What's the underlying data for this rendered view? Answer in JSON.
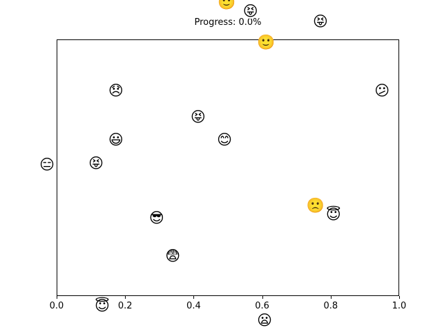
{
  "title": "Progress: 0.0%",
  "colors": {
    "background": "#ffffff",
    "line": "#000000",
    "text": "#000000"
  },
  "x_axis": {
    "tick_labels": [
      "0.0",
      "0.2",
      "0.4",
      "0.6",
      "0.8",
      "1.0"
    ]
  },
  "chart_data": {
    "type": "scatter",
    "title": "Progress: 0.0%",
    "xlabel": "",
    "ylabel": "",
    "xlim": [
      0,
      1
    ],
    "ylim": [
      0,
      1
    ],
    "x_ticks": [
      0,
      0.2,
      0.4,
      0.6,
      0.8,
      1.0
    ],
    "y_ticks": [],
    "grid": false,
    "legend": false,
    "marker": "emoji-face-glyphs",
    "points": [
      {
        "x": 0.496,
        "y": 1.143,
        "emoji": "🙂",
        "name": "slightly-smiling-face"
      },
      {
        "x": 0.566,
        "y": 1.108,
        "emoji": "😝",
        "name": "squinting-face-with-tongue"
      },
      {
        "x": 0.77,
        "y": 1.07,
        "emoji": "😝",
        "name": "squinting-face-with-tongue"
      },
      {
        "x": 0.611,
        "y": 0.989,
        "emoji": "🙂",
        "name": "slightly-smiling-face"
      },
      {
        "x": 0.173,
        "y": 0.798,
        "emoji": "😞",
        "name": "disappointed-face"
      },
      {
        "x": 0.95,
        "y": 0.798,
        "emoji": "😕",
        "name": "confused-face"
      },
      {
        "x": 0.413,
        "y": 0.698,
        "emoji": "😝",
        "name": "squinting-face-with-tongue"
      },
      {
        "x": 0.173,
        "y": 0.607,
        "emoji": "😃",
        "name": "smiling-face-open-mouth"
      },
      {
        "x": 0.49,
        "y": 0.609,
        "emoji": "😊",
        "name": "smiling-face-smiling-eyes"
      },
      {
        "x": 0.115,
        "y": 0.515,
        "emoji": "😝",
        "name": "squinting-face-with-tongue"
      },
      {
        "x": -0.028,
        "y": 0.512,
        "emoji": "😑",
        "name": "expressionless-face"
      },
      {
        "x": 0.292,
        "y": 0.302,
        "emoji": "😎",
        "name": "smiling-face-with-sunglasses"
      },
      {
        "x": 0.756,
        "y": 0.353,
        "emoji": "🙁",
        "name": "slightly-frowning-face"
      },
      {
        "x": 0.808,
        "y": 0.318,
        "emoji": "😇",
        "name": "smiling-face-with-halo"
      },
      {
        "x": 0.339,
        "y": 0.154,
        "emoji": "😨",
        "name": "fearful-face"
      },
      {
        "x": 0.133,
        "y": -0.04,
        "emoji": "😇",
        "name": "smiling-face-with-halo"
      },
      {
        "x": 0.607,
        "y": -0.097,
        "emoji": "😦",
        "name": "frowning-face-open-mouth"
      }
    ]
  }
}
